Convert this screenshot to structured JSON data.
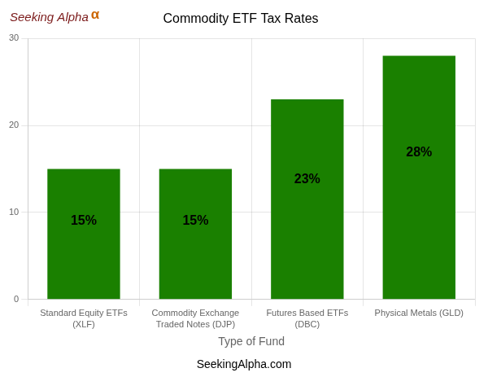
{
  "chart_data": {
    "type": "bar",
    "title": "Commodity ETF Tax Rates",
    "categories": [
      "Standard Equity ETFs\n(XLF)",
      "Commodity Exchange\nTraded Notes (DJP)",
      "Futures Based ETFs\n(DBC)",
      "Physical Metals (GLD)"
    ],
    "values": [
      15,
      15,
      23,
      28
    ],
    "value_labels": [
      "15%",
      "15%",
      "23%",
      "28%"
    ],
    "data_labels": true,
    "color": "#1a8000",
    "xlabel": "Type of Fund",
    "ylim": [
      0,
      30
    ],
    "yticks": [
      0,
      10,
      20,
      30
    ],
    "grid": true,
    "annotations": [
      {
        "text": "Seeking Alpha",
        "color": "#7b1a1a"
      },
      {
        "text": "α",
        "color": "#cc6600"
      },
      {
        "text": "SeekingAlpha.com"
      }
    ]
  }
}
